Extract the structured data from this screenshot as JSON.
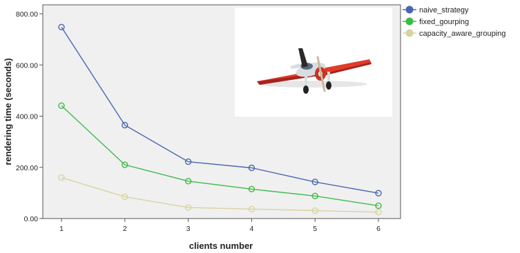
{
  "chart_data": {
    "type": "line",
    "title": "",
    "xlabel": "clients number",
    "ylabel": "rendering time (seconds)",
    "x": [
      1,
      2,
      3,
      4,
      5,
      6
    ],
    "xticks": [
      "1",
      "2",
      "3",
      "4",
      "5",
      "6"
    ],
    "yticks": [
      "0.00",
      "200.00",
      "400.00",
      "600.00",
      "800.00"
    ],
    "ylim": [
      0,
      800
    ],
    "grid": false,
    "legend_position": "right",
    "series": [
      {
        "name": "naive_strategy",
        "color": "#4a66b0",
        "values": [
          748,
          365,
          222,
          198,
          143,
          99
        ]
      },
      {
        "name": "fixed_gourping",
        "color": "#3fb948",
        "values": [
          441,
          210,
          146,
          115,
          88,
          50
        ]
      },
      {
        "name": "capacity_aware_grouping",
        "color": "#d8d3a0",
        "values": [
          160,
          85,
          43,
          37,
          31,
          25
        ]
      }
    ],
    "inset_image": "red-propeller-airplane"
  }
}
